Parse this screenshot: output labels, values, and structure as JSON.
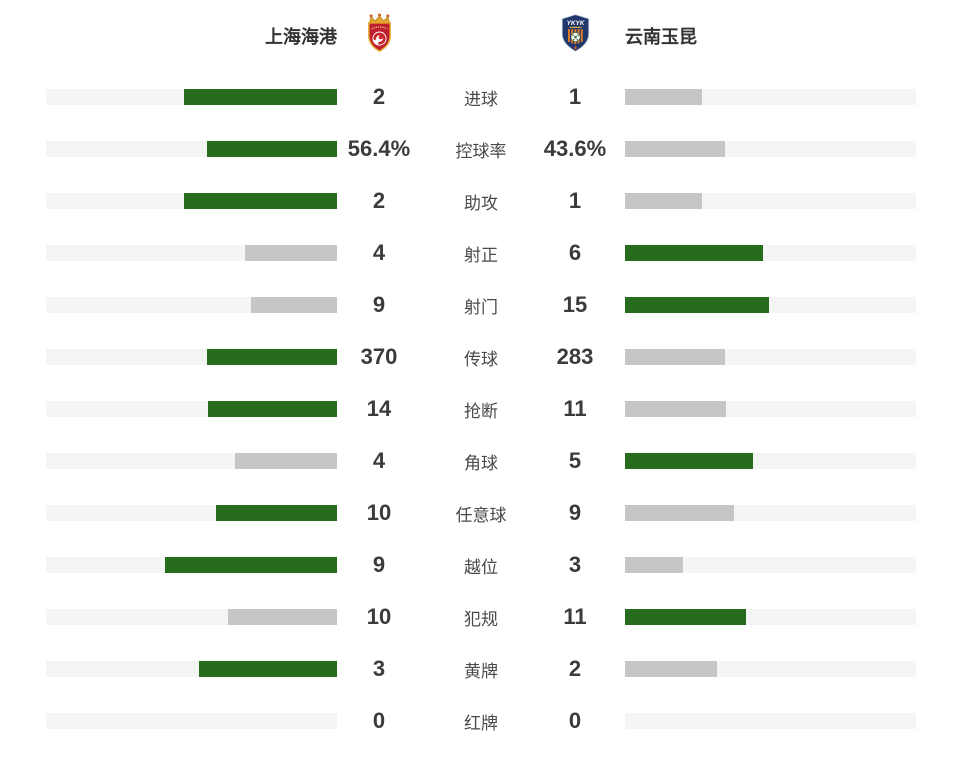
{
  "header": {
    "home_team": "上海海港",
    "away_team": "云南玉昆"
  },
  "chart_data": {
    "type": "bar",
    "orientation": "horizontal-mirrored-paired",
    "layout": "bars grow outward from center; leading value bar is green, trailing value bar is gray; bar length proportional to value share of row total",
    "legend_position": "top (team names with crests)",
    "categories": [
      "进球",
      "控球率",
      "助攻",
      "射正",
      "射门",
      "传球",
      "抢断",
      "角球",
      "任意球",
      "越位",
      "犯规",
      "黄牌",
      "红牌"
    ],
    "series": [
      {
        "name": "上海海港",
        "side": "left",
        "values": [
          2,
          56.4,
          2,
          4,
          9,
          370,
          14,
          4,
          10,
          9,
          10,
          3,
          0
        ],
        "display": [
          "2",
          "56.4%",
          "2",
          "4",
          "9",
          "370",
          "14",
          "4",
          "10",
          "9",
          "10",
          "3",
          "0"
        ]
      },
      {
        "name": "云南玉昆",
        "side": "right",
        "values": [
          1,
          43.6,
          1,
          6,
          15,
          283,
          11,
          5,
          9,
          3,
          11,
          2,
          0
        ],
        "display": [
          "1",
          "43.6%",
          "1",
          "6",
          "15",
          "283",
          "11",
          "5",
          "9",
          "3",
          "11",
          "2",
          "0"
        ]
      }
    ],
    "colors": {
      "leading_bar": "#266b1e",
      "trailing_bar": "#c6c6c6",
      "track": "#f5f5f5"
    }
  },
  "colors": {
    "background": "#ffffff",
    "value_text": "#3b3b3b",
    "label_text": "#4a4a4a",
    "team_text": "#333333"
  }
}
